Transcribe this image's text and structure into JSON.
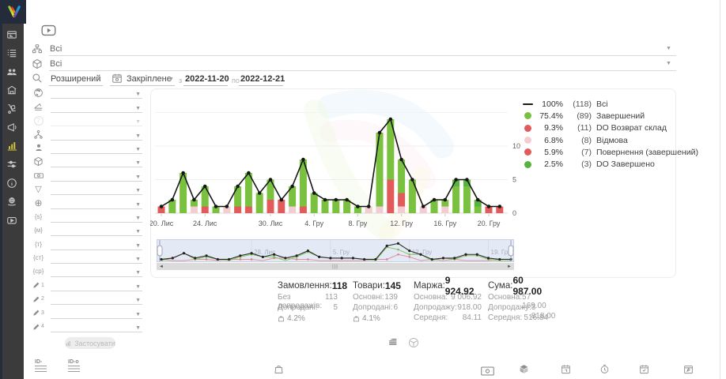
{
  "glyphs": {
    "caret": "▼",
    "left_arrow": "◄",
    "right_arrow": "►",
    "grip": "|||",
    "funnel": "▽",
    "globe_wire": "⊕",
    "question": "?"
  },
  "sidebar": {
    "items": [
      {
        "name": "dashboard"
      },
      {
        "name": "orders"
      },
      {
        "name": "customers"
      },
      {
        "name": "warehouse"
      },
      {
        "name": "logistics"
      },
      {
        "name": "marketing"
      },
      {
        "name": "statistics",
        "active": true
      },
      {
        "name": "settings"
      },
      {
        "name": "info"
      },
      {
        "name": "support"
      },
      {
        "name": "video"
      }
    ]
  },
  "topbar": {
    "entity_filter_value": "Всі",
    "product_filter_value": "Всі",
    "search_mode": "Розширений",
    "period_mode": "Закріплене",
    "from_label": "з",
    "date_from": "2022-11-20",
    "to_label": "по",
    "date_to": "2022-12-21"
  },
  "filters": {
    "text_icons": {
      "s": "{s}",
      "m": "{м}",
      "t": "{т}",
      "ct": "{ст}",
      "cp": "{ср}"
    },
    "pencil_numbers": [
      "1",
      "2",
      "3",
      "4"
    ],
    "apply_label": "Застосувати"
  },
  "chart": {
    "legend": [
      {
        "swatch": "line",
        "color": "#1a1a1a",
        "pct": "100%",
        "count": "(118)",
        "label": "Всі"
      },
      {
        "swatch": "dot",
        "color": "#76c043",
        "pct": "75.4%",
        "count": "(89)",
        "label": "Завершений"
      },
      {
        "swatch": "dot",
        "color": "#e05c5c",
        "pct": "9.3%",
        "count": "(11)",
        "label": "DO Возврат склад"
      },
      {
        "swatch": "dot",
        "color": "#f3ccd1",
        "pct": "6.8%",
        "count": "(8)",
        "label": "Відмова"
      },
      {
        "swatch": "dot",
        "color": "#e05c5c",
        "pct": "5.9%",
        "count": "(7)",
        "label": "Повернення (завершений)"
      },
      {
        "swatch": "dot",
        "color": "#57b33e",
        "pct": "2.5%",
        "count": "(3)",
        "label": "DO Завершено"
      }
    ]
  },
  "chart_data": {
    "type": "bar",
    "subtype": "stacked-bars-with-total-line",
    "dates": [
      "2022-11-20",
      "2022-11-21",
      "2022-11-22",
      "2022-11-23",
      "2022-11-24",
      "2022-11-25",
      "2022-11-26",
      "2022-11-27",
      "2022-11-28",
      "2022-11-29",
      "2022-11-30",
      "2022-12-01",
      "2022-12-02",
      "2022-12-03",
      "2022-12-04",
      "2022-12-05",
      "2022-12-06",
      "2022-12-07",
      "2022-12-08",
      "2022-12-09",
      "2022-12-10",
      "2022-12-11",
      "2022-12-12",
      "2022-12-13",
      "2022-12-14",
      "2022-12-15",
      "2022-12-16",
      "2022-12-17",
      "2022-12-18",
      "2022-12-19",
      "2022-12-20",
      "2022-12-21"
    ],
    "line": {
      "name": "Всі",
      "color": "#151515",
      "total": 118,
      "values": [
        1,
        2,
        6,
        2,
        4,
        1,
        1,
        4,
        6,
        3,
        5,
        2,
        4,
        8,
        3,
        2,
        2,
        2,
        1,
        1,
        12,
        14,
        8,
        5,
        1,
        2,
        2,
        5,
        5,
        2,
        1,
        1
      ]
    },
    "series": [
      {
        "id": "vidmova",
        "name": "Відмова",
        "color": "#f3ccd1",
        "total": 8,
        "values": [
          0,
          0,
          0,
          1,
          0,
          0,
          1,
          0,
          0,
          0,
          0,
          0,
          1,
          0,
          0,
          0,
          0,
          0,
          0,
          1,
          1,
          0,
          1,
          0,
          1,
          0,
          1,
          0,
          0,
          0,
          0,
          0
        ]
      },
      {
        "id": "vozvrat",
        "name": "DO Возврат склад",
        "color": "#e15b5b",
        "total": 11,
        "values": [
          1,
          0,
          0,
          0,
          1,
          0,
          0,
          0,
          1,
          0,
          2,
          2,
          0,
          0,
          0,
          0,
          0,
          0,
          0,
          0,
          0,
          1,
          2,
          0,
          0,
          0,
          0,
          0,
          0,
          0,
          0,
          1
        ]
      },
      {
        "id": "povernennya",
        "name": "Повернення (завершений)",
        "color": "#e15b5b",
        "total": 7,
        "values": [
          0,
          0,
          0,
          0,
          0,
          0,
          0,
          1,
          0,
          0,
          0,
          0,
          0,
          1,
          0,
          0,
          0,
          0,
          0,
          0,
          0,
          4,
          0,
          0,
          0,
          0,
          0,
          0,
          0,
          0,
          1,
          0
        ]
      },
      {
        "id": "zaversheny",
        "name": "Завершений",
        "color": "#79c13f",
        "total": 89,
        "values": [
          0,
          2,
          6,
          1,
          3,
          1,
          0,
          3,
          5,
          3,
          3,
          0,
          3,
          7,
          3,
          2,
          2,
          2,
          1,
          0,
          11,
          9,
          5,
          5,
          0,
          2,
          1,
          4,
          4,
          1,
          0,
          0
        ]
      },
      {
        "id": "do_zaversheno",
        "name": "DO Завершено",
        "color": "#57b33e",
        "total": 3,
        "values": [
          0,
          0,
          0,
          0,
          0,
          0,
          0,
          0,
          0,
          0,
          0,
          0,
          0,
          0,
          0,
          0,
          0,
          0,
          0,
          0,
          0,
          0,
          0,
          0,
          0,
          0,
          0,
          1,
          1,
          1,
          0,
          0
        ]
      }
    ],
    "stack_order": [
      "vidmova",
      "vozvrat",
      "povernennya",
      "zaversheny",
      "do_zaversheno"
    ],
    "yticks": [
      0,
      5,
      10
    ],
    "ylim": [
      0,
      15
    ],
    "grid": true,
    "xticks": [
      {
        "i": 0,
        "label": "20. Лис"
      },
      {
        "i": 4,
        "label": "24. Лис"
      },
      {
        "i": 10,
        "label": "30. Лис"
      },
      {
        "i": 14,
        "label": "4. Гру"
      },
      {
        "i": 18,
        "label": "8. Гру"
      },
      {
        "i": 22,
        "label": "12. Гру"
      },
      {
        "i": 26,
        "label": "16. Гру"
      },
      {
        "i": 30,
        "label": "20. Гру"
      }
    ],
    "navigator": {
      "labels": [
        {
          "i": 8,
          "label": "28. Лис"
        },
        {
          "i": 15,
          "label": "5. Гру"
        },
        {
          "i": 22,
          "label": "12. Гру"
        },
        {
          "i": 29,
          "label": "19. Гру"
        }
      ]
    }
  },
  "stats": {
    "cards": [
      {
        "title": "Замовлення:",
        "value": "118",
        "rows": [
          {
            "label": "Без допродажів:",
            "value": "113"
          },
          {
            "label": "Допродані:",
            "value": "5"
          }
        ],
        "rate": "4.2%"
      },
      {
        "title": "Товари:",
        "value": "145",
        "rows": [
          {
            "label": "Основні:",
            "value": "139"
          },
          {
            "label": "Допродані:",
            "value": "6"
          }
        ],
        "rate": "4.1%"
      },
      {
        "title": "Маржа:",
        "value": "9 924.92",
        "rows": [
          {
            "label": "Основна:",
            "value": "9 006.92"
          },
          {
            "label": "Допродажу:",
            "value": "918.00"
          },
          {
            "label": "Середня:",
            "value": "84.11"
          }
        ]
      },
      {
        "title": "Сума:",
        "value": "60 987.00",
        "rows": [
          {
            "label": "Основна:",
            "value": "57 169.00"
          },
          {
            "label": "Допродажу:",
            "value": "3 818.00"
          },
          {
            "label": "Середня:",
            "value": "516.84"
          }
        ]
      }
    ]
  },
  "footer": {
    "id_col1": "ID-",
    "id_col2": "ID-о"
  }
}
